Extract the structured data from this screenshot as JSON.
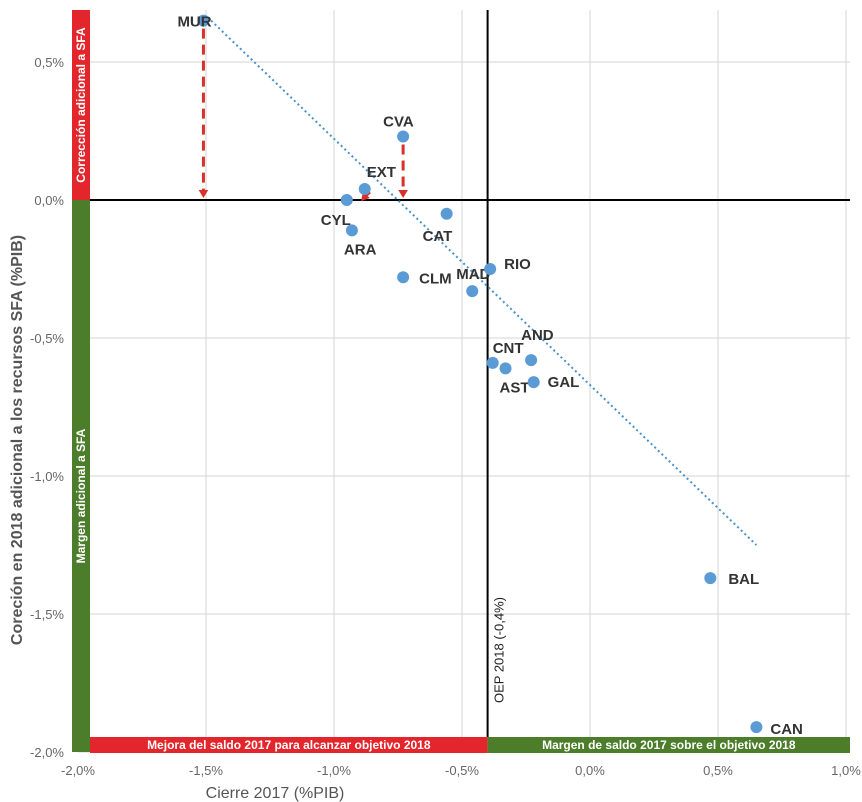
{
  "chart_data": {
    "type": "scatter",
    "xlabel": "Cierre 2017 (%PIB)",
    "ylabel": "Coreción en 2018 adicional a los recursos SFA (%PIB)",
    "xlim": [
      -2.0,
      1.0
    ],
    "ylim": [
      -2.0,
      0.7
    ],
    "x_ticks": [
      -2.0,
      -1.5,
      -1.0,
      -0.5,
      0.0,
      0.5,
      1.0
    ],
    "x_tick_labels": [
      "-2,0%",
      "-1,5%",
      "-1,0%",
      "-0,5%",
      "0,0%",
      "0,5%",
      "1,0%"
    ],
    "y_ticks": [
      0.5,
      0.0,
      -0.5,
      -1.0,
      -1.5,
      -2.0
    ],
    "y_tick_labels": [
      "0,5%",
      "0,0%",
      "-0,5%",
      "-1,0%",
      "-1,5%",
      "-2,0%"
    ],
    "grid": true,
    "points": [
      {
        "label": "MUR",
        "x": -1.51,
        "y": 0.65
      },
      {
        "label": "CVA",
        "x": -0.73,
        "y": 0.23
      },
      {
        "label": "EXT",
        "x": -0.88,
        "y": 0.04
      },
      {
        "label": "CYL",
        "x": -0.95,
        "y": 0.0
      },
      {
        "label": "ARA",
        "x": -0.93,
        "y": -0.11
      },
      {
        "label": "CAT",
        "x": -0.56,
        "y": -0.05
      },
      {
        "label": "CLM",
        "x": -0.73,
        "y": -0.28
      },
      {
        "label": "MAD",
        "x": -0.46,
        "y": -0.33
      },
      {
        "label": "RIO",
        "x": -0.39,
        "y": -0.25
      },
      {
        "label": "CNT",
        "x": -0.38,
        "y": -0.59
      },
      {
        "label": "AND",
        "x": -0.23,
        "y": -0.58
      },
      {
        "label": "AST",
        "x": -0.33,
        "y": -0.61
      },
      {
        "label": "GAL",
        "x": -0.22,
        "y": -0.66
      },
      {
        "label": "BAL",
        "x": 0.47,
        "y": -1.37
      },
      {
        "label": "CAN",
        "x": 0.65,
        "y": -1.91
      }
    ],
    "trendline": {
      "style": "dotted",
      "color": "#4a90c8",
      "from": [
        -1.48,
        0.65
      ],
      "to": [
        0.65,
        -1.25
      ]
    },
    "arrows": [
      {
        "from": [
          -1.51,
          0.65
        ],
        "to": [
          -1.51,
          0.0
        ],
        "color": "#d9302c"
      },
      {
        "from": [
          -0.73,
          0.23
        ],
        "to": [
          -0.73,
          0.0
        ],
        "color": "#d9302c"
      },
      {
        "from": [
          -0.88,
          0.04
        ],
        "to": [
          -0.86,
          0.0
        ],
        "color": "#d9302c"
      }
    ],
    "reference_lines": {
      "horizontal_y": 0.0,
      "vertical_x": -0.4,
      "vertical_label": "OEP 2018 (-0,4%)"
    },
    "bands": {
      "top_left": {
        "text": "Corrección adicional a SFA",
        "color": "#e3262c"
      },
      "left": {
        "text": "Margen adicional a SFA",
        "color": "#4b7d2b"
      },
      "bottom_left": {
        "text": "Mejora del saldo 2017 para alcanzar objetivo 2018",
        "color": "#e3262c"
      },
      "bottom_right": {
        "text": "Margen de saldo 2017 sobre el objetivo 2018",
        "color": "#4b7d2b"
      }
    },
    "colors": {
      "points": "#5b9bd5",
      "grid": "#d4d4d4",
      "axis": "#000000"
    }
  }
}
